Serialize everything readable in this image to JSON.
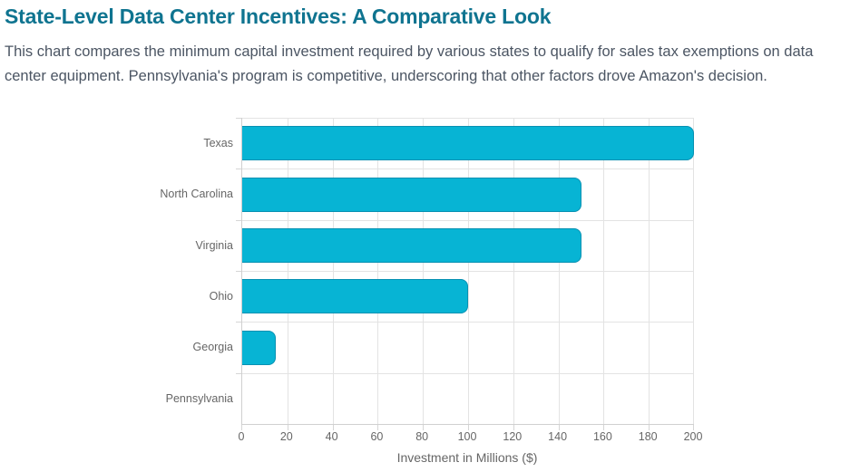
{
  "header": {
    "title": "State-Level Data Center Incentives: A Comparative Look",
    "description": "This chart compares the minimum capital investment required by various states to qualify for sales tax exemptions on data center equipment. Pennsylvania's program is competitive, underscoring that other factors drove Amazon's decision."
  },
  "chart_data": {
    "type": "bar",
    "orientation": "horizontal",
    "title": "",
    "categories": [
      "Texas",
      "North Carolina",
      "Virginia",
      "Ohio",
      "Georgia",
      "Pennsylvania"
    ],
    "values": [
      200,
      150,
      150,
      100,
      15,
      0
    ],
    "xlabel": "Investment in Millions ($)",
    "ylabel": "",
    "xticks": [
      0,
      20,
      40,
      60,
      80,
      100,
      120,
      140,
      160,
      180,
      200
    ],
    "xlim": [
      0,
      200
    ],
    "grid": true,
    "legend": false,
    "bar_color": "#07b4d4",
    "bar_border_color": "#0891b2"
  },
  "colors": {
    "title_text": "#0f7490",
    "body_text": "#4b5563",
    "axis_text": "#666666"
  }
}
